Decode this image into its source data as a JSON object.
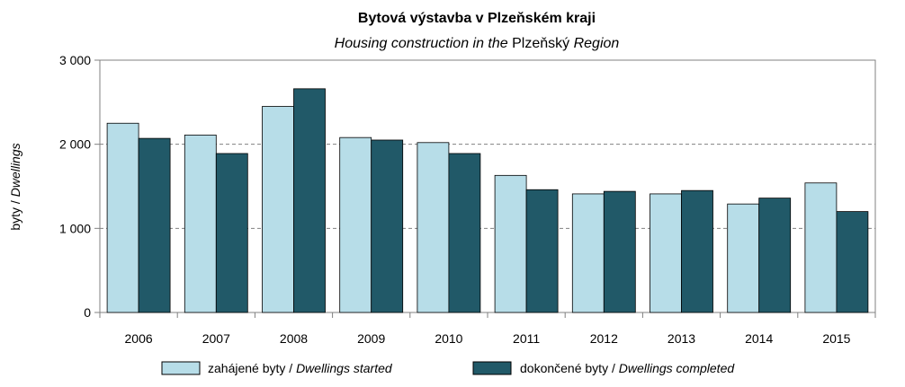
{
  "chart_data": {
    "type": "bar",
    "title": "Bytová výstavba v Plzeňském kraji",
    "subtitle": {
      "part1": "Housing construction in the ",
      "part2": "Plzeňský",
      "part3": " Region"
    },
    "ylabel": {
      "part1": "byty / ",
      "part2": "Dwellings"
    },
    "xlabel": "",
    "ylim": [
      0,
      3000
    ],
    "yticks": [
      0,
      1000,
      2000,
      3000
    ],
    "ytick_labels": [
      "0",
      "1 000",
      "2 000",
      "3 000"
    ],
    "grid": "horizontal dashed",
    "legend_position": "bottom",
    "categories": [
      "2006",
      "2007",
      "2008",
      "2009",
      "2010",
      "2011",
      "2012",
      "2013",
      "2014",
      "2015"
    ],
    "series": [
      {
        "name_plain": "zahájené byty / ",
        "name_italic": "Dwellings started",
        "color": "#b7dde8",
        "values": [
          2250,
          2110,
          2450,
          2080,
          2020,
          1630,
          1410,
          1410,
          1290,
          1540
        ]
      },
      {
        "name_plain": "dokončené byty / ",
        "name_italic": "Dwellings completed",
        "color": "#215968",
        "values": [
          2070,
          1890,
          2660,
          2050,
          1890,
          1460,
          1440,
          1450,
          1360,
          1200
        ]
      }
    ]
  }
}
